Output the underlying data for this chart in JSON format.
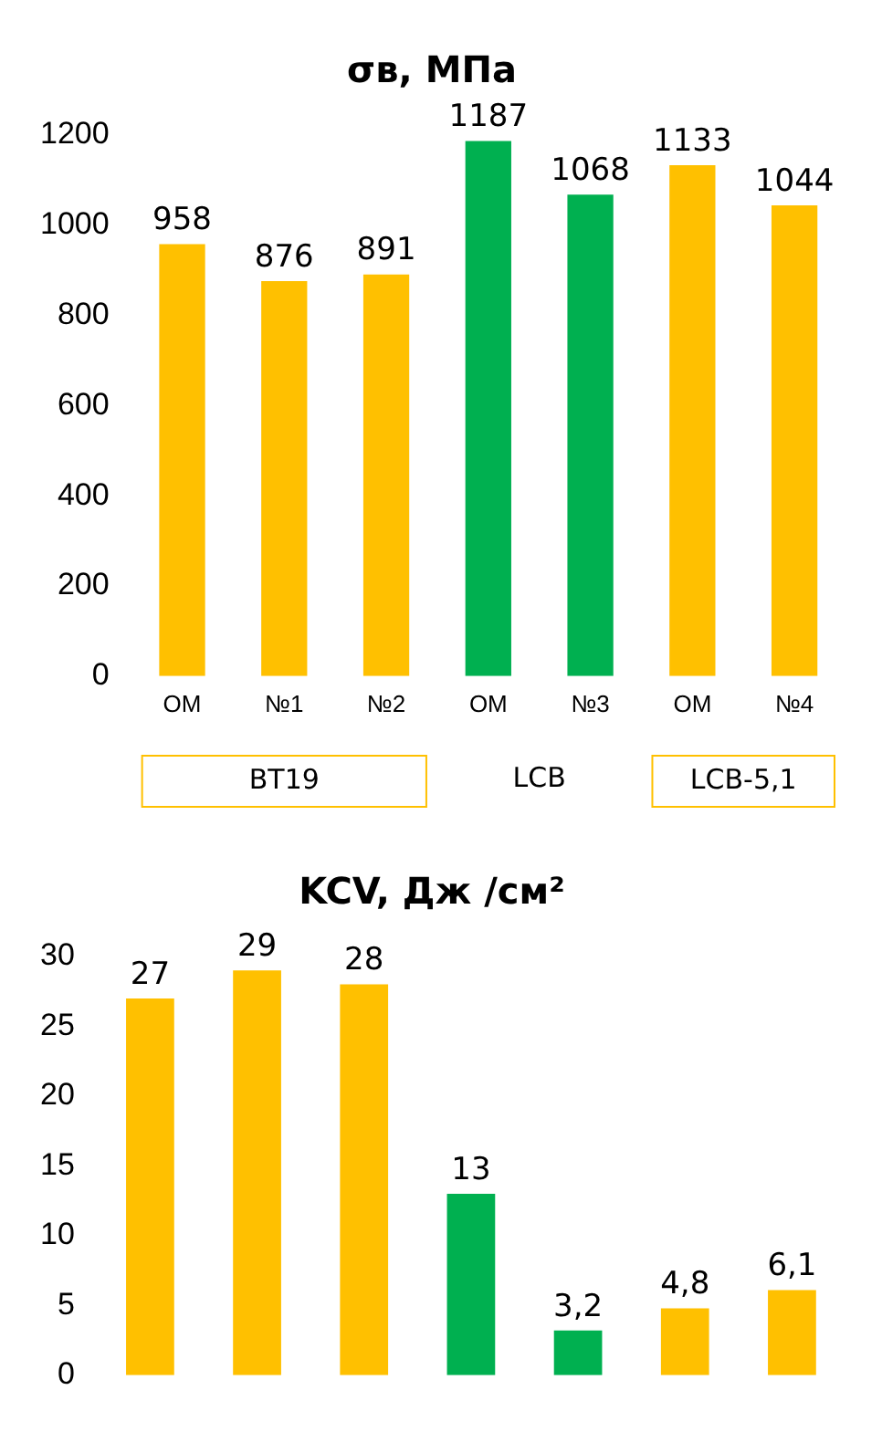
{
  "chart_data": [
    {
      "type": "bar",
      "title": "σв, МПа",
      "categories": [
        "OM",
        "№1",
        "№2",
        "OM",
        "№3",
        "OM",
        "№4"
      ],
      "values": [
        958,
        876,
        891,
        1187,
        1068,
        1133,
        1044
      ],
      "colors": [
        "#ffc000",
        "#ffc000",
        "#ffc000",
        "#00b050",
        "#00b050",
        "#ffc000",
        "#ffc000"
      ],
      "ylim": [
        0,
        1200
      ],
      "yticks": [
        0,
        200,
        400,
        600,
        800,
        1000,
        1200
      ],
      "grid": false,
      "legend": false,
      "data_labels": true,
      "annotations": [
        "BT19",
        "LCB",
        "LCB-5,1"
      ]
    },
    {
      "type": "bar",
      "title": "KCV, Дж /см²",
      "categories": [
        null,
        null,
        null,
        null,
        null,
        null,
        null
      ],
      "values": [
        27,
        29,
        28,
        13,
        3.2,
        4.8,
        6.1
      ],
      "value_labels": [
        "27",
        "29",
        "28",
        "13",
        "3,2",
        "4,8",
        "6,1"
      ],
      "colors": [
        "#ffc000",
        "#ffc000",
        "#ffc000",
        "#00b050",
        "#00b050",
        "#ffc000",
        "#ffc000"
      ],
      "ylim": [
        0,
        30
      ],
      "yticks": [
        0,
        5,
        10,
        15,
        20,
        25,
        30
      ],
      "grid": false,
      "legend": false
    }
  ]
}
